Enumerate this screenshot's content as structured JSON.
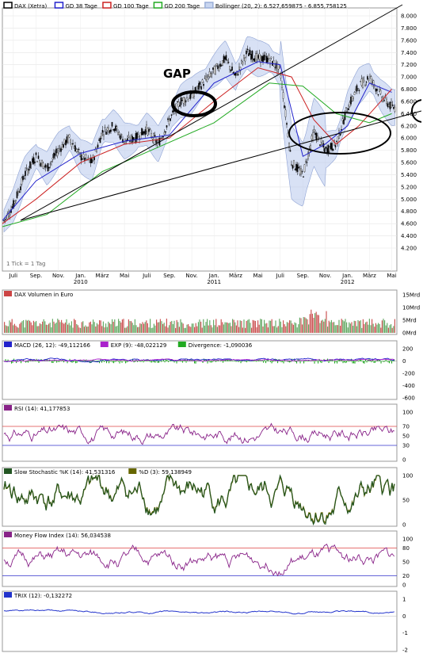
{
  "annotations": {
    "gap": "GAP"
  },
  "main": {
    "legend": [
      "DAX (Xetra)",
      "GD 38 Tage",
      "GD 100 Tage",
      "GD 200 Tage",
      "Bollinger (20, 2): 6.527,659875 - 6.855,758125"
    ],
    "legend_colors": [
      "#000000",
      "#2222cc",
      "#cc2222",
      "#22aa22",
      "#9aaed8"
    ],
    "y_ticks": [
      "8.000",
      "7.800",
      "7.600",
      "7.400",
      "7.200",
      "7.000",
      "6.800",
      "6.600",
      "6.400",
      "6.200",
      "6.000",
      "5.800",
      "5.600",
      "5.400",
      "5.200",
      "5.000",
      "4.800",
      "4.600",
      "4.400",
      "4.200"
    ],
    "x_months": [
      "Juli",
      "Sep.",
      "Nov.",
      "Jan.",
      "März",
      "Mai",
      "Juli",
      "Sep.",
      "Nov.",
      "Jan.",
      "März",
      "Mai",
      "Juli",
      "Sep.",
      "Nov.",
      "Jan.",
      "März",
      "Mai"
    ],
    "x_years": [
      "2010",
      "2011",
      "2012"
    ],
    "footnote": "1 Tick = 1 Tag"
  },
  "volume": {
    "legend": "DAX Volumen in Euro",
    "y_ticks": [
      "15Mrd",
      "10Mrd",
      "5Mrd",
      "0Mrd"
    ]
  },
  "macd": {
    "legend": [
      "MACD (26, 12): -49,112166",
      "EXP (9): -48,022129",
      "Divergence: -1,090036"
    ],
    "legend_colors": [
      "#2222cc",
      "#aa22cc",
      "#22aa22"
    ],
    "y_ticks": [
      "200",
      "0",
      "-200",
      "-400",
      "-600"
    ]
  },
  "rsi": {
    "legend": "RSI (14): 41,177853",
    "y_ticks": [
      "100",
      "70",
      "50",
      "30",
      "0"
    ]
  },
  "stoch": {
    "legend": [
      "Slow Stochastic %K (14): 41,531316",
      "%D (3): 59,138949"
    ],
    "legend_colors": [
      "#225522",
      "#666600"
    ],
    "y_ticks": [
      "100",
      "50",
      "0"
    ]
  },
  "mfi": {
    "legend": "Money Flow Index (14): 56,034538",
    "y_ticks": [
      "100",
      "80",
      "50",
      "20",
      "0"
    ]
  },
  "trix": {
    "legend": "TRIX (12): -0,132272",
    "y_ticks": [
      "1",
      "0",
      "-1",
      "-2"
    ]
  },
  "chart_data": [
    {
      "type": "line",
      "title": "DAX (Xetra)",
      "x_range": [
        "2009-06",
        "2012-05"
      ],
      "ylim": [
        4200,
        8000
      ],
      "series": [
        {
          "name": "DAX (Xetra)",
          "x": [
            "2009-06",
            "2009-07",
            "2009-08",
            "2009-09",
            "2009-10",
            "2009-11",
            "2009-12",
            "2010-01",
            "2010-02",
            "2010-03",
            "2010-04",
            "2010-05",
            "2010-06",
            "2010-07",
            "2010-08",
            "2010-09",
            "2010-10",
            "2010-11",
            "2010-12",
            "2011-01",
            "2011-02",
            "2011-03",
            "2011-04",
            "2011-05",
            "2011-06",
            "2011-07",
            "2011-08",
            "2011-09",
            "2011-10",
            "2011-11",
            "2011-12",
            "2012-01",
            "2012-02",
            "2012-03",
            "2012-04",
            "2012-05"
          ],
          "values": [
            4600,
            4900,
            5400,
            5700,
            5500,
            5800,
            6000,
            5700,
            5600,
            6100,
            6200,
            5950,
            6000,
            6150,
            5900,
            6300,
            6600,
            6700,
            6900,
            7100,
            7300,
            7000,
            7400,
            7300,
            7300,
            7100,
            5600,
            5400,
            6100,
            5800,
            5900,
            6500,
            6850,
            7000,
            6700,
            6500
          ]
        },
        {
          "name": "GD 38 Tage",
          "x": [
            "2009-06",
            "2009-09",
            "2010-01",
            "2010-05",
            "2010-09",
            "2011-01",
            "2011-05",
            "2011-07",
            "2011-09",
            "2011-11",
            "2012-01",
            "2012-03",
            "2012-05"
          ],
          "values": [
            4650,
            5300,
            5750,
            5950,
            6050,
            6900,
            7250,
            7200,
            5700,
            5900,
            6200,
            6900,
            6750
          ]
        },
        {
          "name": "GD 100 Tage",
          "x": [
            "2009-06",
            "2009-09",
            "2010-01",
            "2010-05",
            "2010-09",
            "2011-01",
            "2011-05",
            "2011-08",
            "2011-10",
            "2011-12",
            "2012-02",
            "2012-05"
          ],
          "values": [
            4600,
            5000,
            5600,
            5900,
            6000,
            6600,
            7150,
            7000,
            6300,
            5900,
            6200,
            6800
          ]
        },
        {
          "name": "GD 200 Tage",
          "x": [
            "2009-06",
            "2009-10",
            "2010-03",
            "2010-08",
            "2011-01",
            "2011-06",
            "2011-09",
            "2011-12",
            "2012-03",
            "2012-05"
          ],
          "values": [
            4550,
            4750,
            5450,
            5850,
            6250,
            6900,
            6850,
            6400,
            6250,
            6400
          ]
        }
      ]
    },
    {
      "type": "bar",
      "title": "DAX Volumen in Euro",
      "ylim": [
        0,
        15
      ],
      "y_unit": "Mrd"
    },
    {
      "type": "line",
      "title": "MACD (26, 12)",
      "ylim": [
        -600,
        200
      ],
      "series": [
        {
          "name": "MACD (26, 12)",
          "last": -49.112166
        },
        {
          "name": "EXP (9)",
          "last": -48.022129
        },
        {
          "name": "Divergence",
          "last": -1.090036
        }
      ]
    },
    {
      "type": "line",
      "title": "RSI (14)",
      "ylim": [
        0,
        100
      ],
      "reference_lines": [
        70,
        30
      ],
      "last": 41.177853
    },
    {
      "type": "line",
      "title": "Slow Stochastic %K (14)",
      "ylim": [
        0,
        100
      ],
      "series": [
        {
          "name": "Slow Stochastic %K (14)",
          "last": 41.531316
        },
        {
          "name": "%D (3)",
          "last": 59.138949
        }
      ]
    },
    {
      "type": "line",
      "title": "Money Flow Index (14)",
      "ylim": [
        0,
        100
      ],
      "reference_lines": [
        80,
        20
      ],
      "last": 56.034538
    },
    {
      "type": "line",
      "title": "TRIX (12)",
      "ylim": [
        -2,
        1
      ],
      "last": -0.132272
    }
  ]
}
